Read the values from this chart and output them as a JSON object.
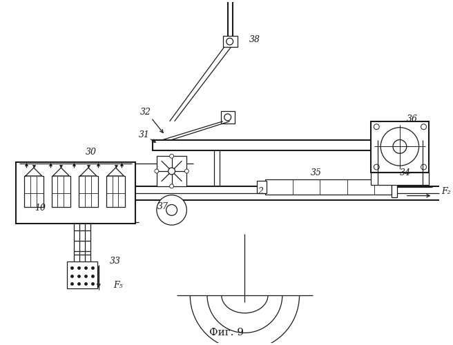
{
  "title": "Фиг. 9",
  "bg_color": "#ffffff",
  "line_color": "#1a1a1a",
  "lw": 0.9,
  "lw2": 1.5,
  "fig_width": 6.56,
  "fig_height": 5.0
}
